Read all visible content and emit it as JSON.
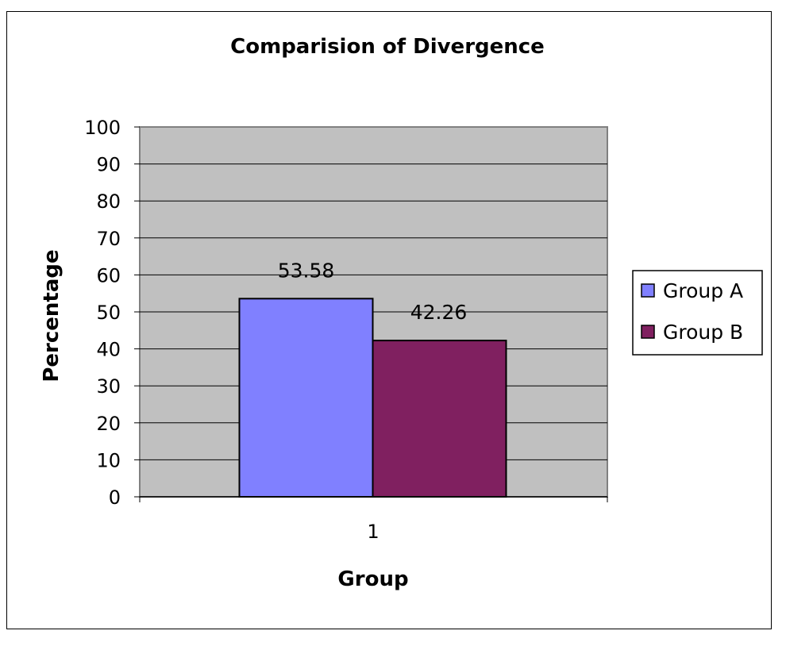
{
  "chart_data": {
    "type": "bar",
    "title": "Comparision of Divergence",
    "xlabel": "Group",
    "ylabel": "Percentage",
    "categories": [
      "1"
    ],
    "series": [
      {
        "name": "Group A",
        "values": [
          53.58
        ],
        "color": "#8080FF"
      },
      {
        "name": "Group B",
        "values": [
          42.26
        ],
        "color": "#802060"
      }
    ],
    "ylim": [
      0,
      100
    ],
    "yticks": [
      "0",
      "10",
      "20",
      "30",
      "40",
      "50",
      "60",
      "70",
      "80",
      "90",
      "100"
    ],
    "data_labels": [
      "53.58",
      "42.26"
    ],
    "grid": true,
    "legend": "right",
    "plot_background": "#C0C0C0"
  }
}
